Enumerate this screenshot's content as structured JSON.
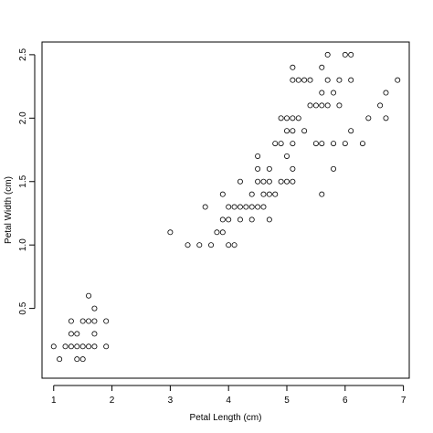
{
  "chart_data": {
    "type": "scatter",
    "xlabel": "Petal Length (cm)",
    "ylabel": "Petal Width (cm)",
    "xlim": [
      0.8,
      7.1
    ],
    "ylim": [
      -0.05,
      2.6
    ],
    "x_ticks": [
      1,
      2,
      3,
      4,
      5,
      6,
      7
    ],
    "y_ticks": [
      0.5,
      1.0,
      1.5,
      2.0,
      2.5
    ],
    "x_tick_labels": [
      "1",
      "2",
      "3",
      "4",
      "5",
      "6",
      "7"
    ],
    "y_tick_labels": [
      "0.5",
      "1.0",
      "1.5",
      "2.0",
      "2.5"
    ],
    "grid": false,
    "marker": "open-circle",
    "points": [
      [
        1.0,
        0.2
      ],
      [
        1.1,
        0.1
      ],
      [
        1.2,
        0.2
      ],
      [
        1.3,
        0.2
      ],
      [
        1.3,
        0.3
      ],
      [
        1.3,
        0.4
      ],
      [
        1.4,
        0.1
      ],
      [
        1.4,
        0.2
      ],
      [
        1.4,
        0.3
      ],
      [
        1.5,
        0.1
      ],
      [
        1.5,
        0.2
      ],
      [
        1.5,
        0.4
      ],
      [
        1.6,
        0.2
      ],
      [
        1.6,
        0.4
      ],
      [
        1.6,
        0.6
      ],
      [
        1.7,
        0.2
      ],
      [
        1.7,
        0.3
      ],
      [
        1.7,
        0.4
      ],
      [
        1.7,
        0.5
      ],
      [
        1.9,
        0.2
      ],
      [
        1.9,
        0.4
      ],
      [
        3.0,
        1.1
      ],
      [
        3.3,
        1.0
      ],
      [
        3.5,
        1.0
      ],
      [
        3.6,
        1.3
      ],
      [
        3.7,
        1.0
      ],
      [
        3.8,
        1.1
      ],
      [
        3.9,
        1.1
      ],
      [
        3.9,
        1.2
      ],
      [
        3.9,
        1.4
      ],
      [
        4.0,
        1.0
      ],
      [
        4.0,
        1.2
      ],
      [
        4.0,
        1.3
      ],
      [
        4.1,
        1.0
      ],
      [
        4.1,
        1.3
      ],
      [
        4.2,
        1.2
      ],
      [
        4.2,
        1.3
      ],
      [
        4.2,
        1.5
      ],
      [
        4.3,
        1.3
      ],
      [
        4.4,
        1.2
      ],
      [
        4.4,
        1.3
      ],
      [
        4.4,
        1.4
      ],
      [
        4.5,
        1.3
      ],
      [
        4.5,
        1.5
      ],
      [
        4.5,
        1.7
      ],
      [
        4.6,
        1.3
      ],
      [
        4.6,
        1.4
      ],
      [
        4.6,
        1.5
      ],
      [
        4.7,
        1.2
      ],
      [
        4.7,
        1.4
      ],
      [
        4.7,
        1.5
      ],
      [
        4.7,
        1.6
      ],
      [
        4.8,
        1.4
      ],
      [
        4.8,
        1.8
      ],
      [
        4.9,
        1.5
      ],
      [
        4.9,
        1.8
      ],
      [
        4.9,
        2.0
      ],
      [
        4.5,
        1.6
      ],
      [
        5.0,
        1.5
      ],
      [
        5.0,
        1.7
      ],
      [
        5.0,
        1.9
      ],
      [
        5.0,
        2.0
      ],
      [
        5.1,
        1.5
      ],
      [
        5.1,
        1.6
      ],
      [
        5.1,
        1.8
      ],
      [
        5.1,
        1.9
      ],
      [
        5.1,
        2.0
      ],
      [
        5.1,
        2.3
      ],
      [
        5.1,
        2.4
      ],
      [
        5.2,
        2.0
      ],
      [
        5.2,
        2.3
      ],
      [
        5.3,
        1.9
      ],
      [
        5.3,
        2.3
      ],
      [
        5.4,
        2.1
      ],
      [
        5.4,
        2.3
      ],
      [
        5.5,
        1.8
      ],
      [
        5.5,
        2.1
      ],
      [
        5.6,
        1.4
      ],
      [
        5.6,
        1.8
      ],
      [
        5.6,
        2.1
      ],
      [
        5.6,
        2.2
      ],
      [
        5.6,
        2.4
      ],
      [
        5.7,
        2.1
      ],
      [
        5.7,
        2.3
      ],
      [
        5.7,
        2.5
      ],
      [
        5.8,
        1.6
      ],
      [
        5.8,
        2.2
      ],
      [
        5.8,
        1.8
      ],
      [
        5.9,
        2.1
      ],
      [
        5.9,
        2.3
      ],
      [
        6.0,
        1.8
      ],
      [
        6.0,
        2.5
      ],
      [
        6.1,
        1.9
      ],
      [
        6.1,
        2.3
      ],
      [
        6.1,
        2.5
      ],
      [
        6.3,
        1.8
      ],
      [
        6.4,
        2.0
      ],
      [
        6.6,
        2.1
      ],
      [
        6.7,
        2.0
      ],
      [
        6.7,
        2.2
      ],
      [
        6.9,
        2.3
      ]
    ]
  }
}
